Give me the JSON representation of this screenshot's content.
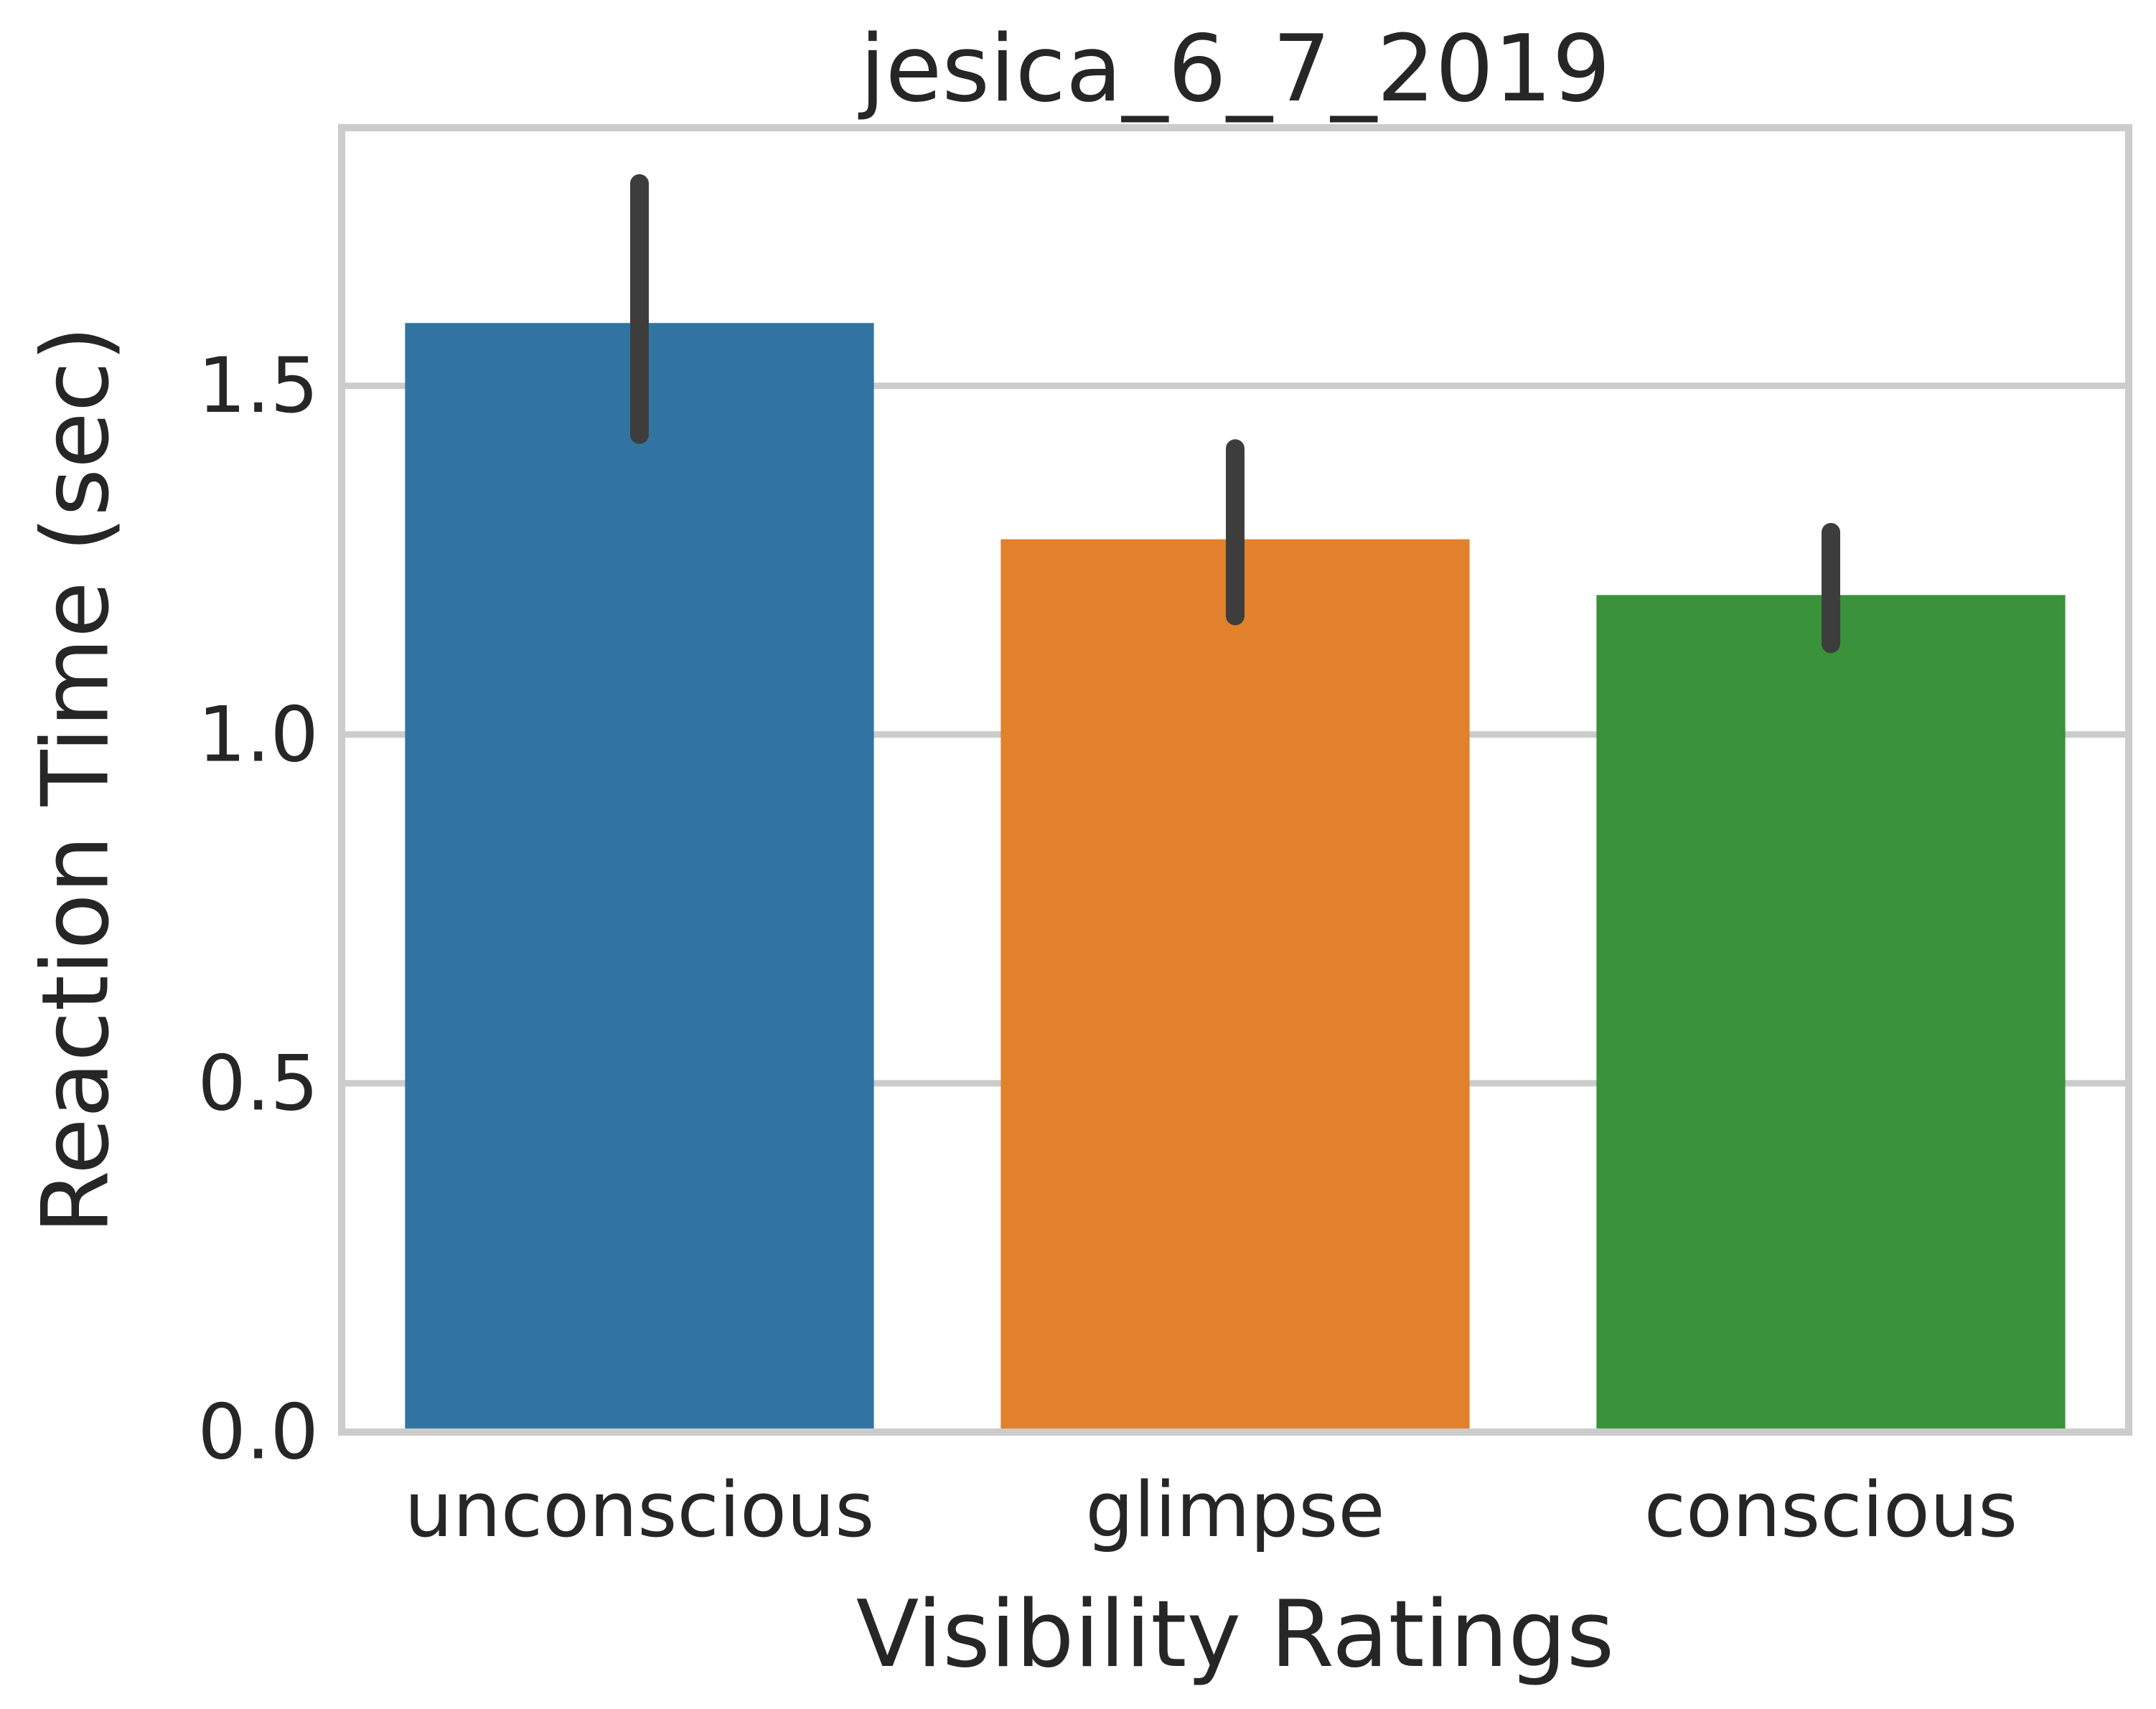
{
  "chart_data": {
    "type": "bar",
    "title": "jesica_6_7_2019",
    "xlabel": "Visibility Ratings",
    "ylabel": "Reaction Time (sec)",
    "categories": [
      "unconscious",
      "glimpse",
      "conscious"
    ],
    "values": [
      1.59,
      1.28,
      1.2
    ],
    "error_bars": [
      {
        "low": 1.43,
        "high": 1.79
      },
      {
        "low": 1.17,
        "high": 1.41
      },
      {
        "low": 1.13,
        "high": 1.29
      }
    ],
    "colors": [
      "#3274a1",
      "#e1812c",
      "#3a923a"
    ],
    "error_color": "#3d3d3d",
    "ylim": [
      0,
      1.87
    ],
    "yticks": [
      0.0,
      0.5,
      1.0,
      1.5
    ],
    "ytick_labels": [
      "0.0",
      "0.5",
      "1.0",
      "1.5"
    ],
    "grid": "horizontal",
    "legend": "none"
  }
}
